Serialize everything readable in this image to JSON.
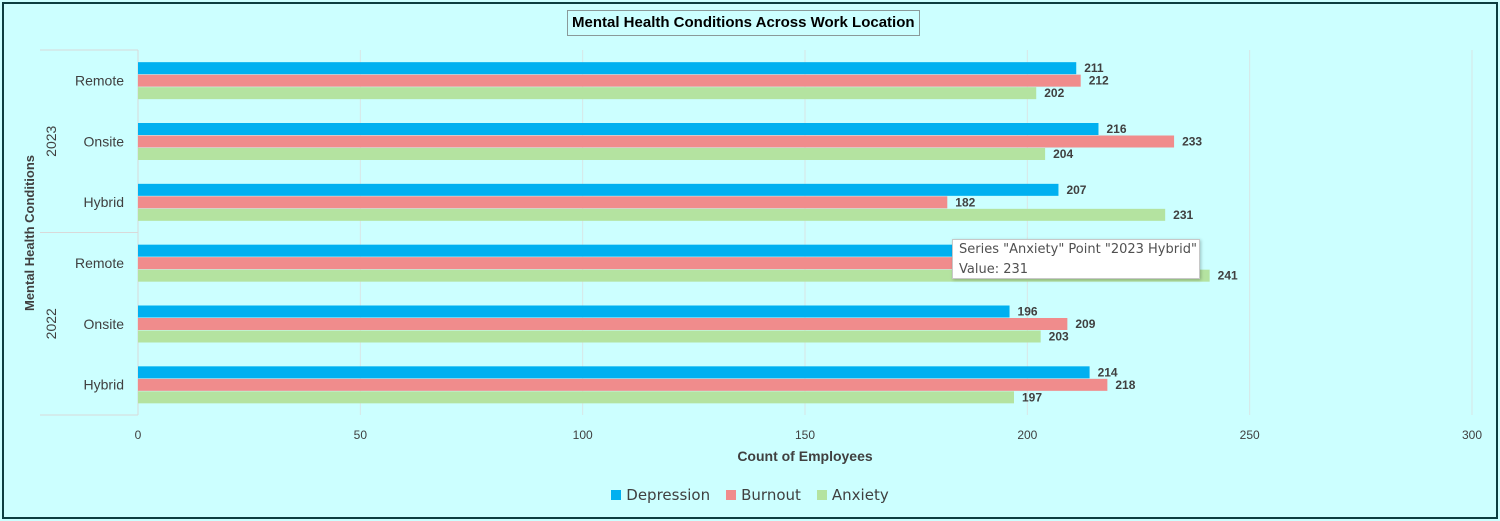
{
  "chart_data": {
    "type": "bar",
    "orientation": "horizontal",
    "title": "Mental Health Conditions Across Work Location",
    "xlabel": "Count of Employees",
    "ylabel": "Mental Health Conditions",
    "xlim": [
      0,
      300
    ],
    "xticks": [
      0,
      50,
      100,
      150,
      200,
      250,
      300
    ],
    "grid": true,
    "legend_position": "bottom",
    "groups": [
      {
        "year": "2023",
        "categories": [
          "Remote",
          "Onsite",
          "Hybrid"
        ]
      },
      {
        "year": "2022",
        "categories": [
          "Remote",
          "Onsite",
          "Hybrid"
        ]
      }
    ],
    "series": [
      {
        "name": "Depression",
        "color": "#00b0f0",
        "values": [
          211,
          216,
          207,
          null,
          196,
          214
        ]
      },
      {
        "name": "Burnout",
        "color": "#f08c8c",
        "values": [
          212,
          233,
          182,
          null,
          209,
          218
        ]
      },
      {
        "name": "Anxiety",
        "color": "#b4e3a0",
        "values": [
          202,
          204,
          231,
          241,
          203,
          197
        ]
      }
    ],
    "hidden_bars": [
      {
        "series": "Depression",
        "category": "2022 Remote",
        "approx_value": 190
      },
      {
        "series": "Burnout",
        "category": "2022 Remote",
        "approx_value": 190
      }
    ]
  },
  "tooltip": {
    "line1": "Series \"Anxiety\" Point \"2023 Hybrid\"",
    "line2": "Value: 231"
  }
}
